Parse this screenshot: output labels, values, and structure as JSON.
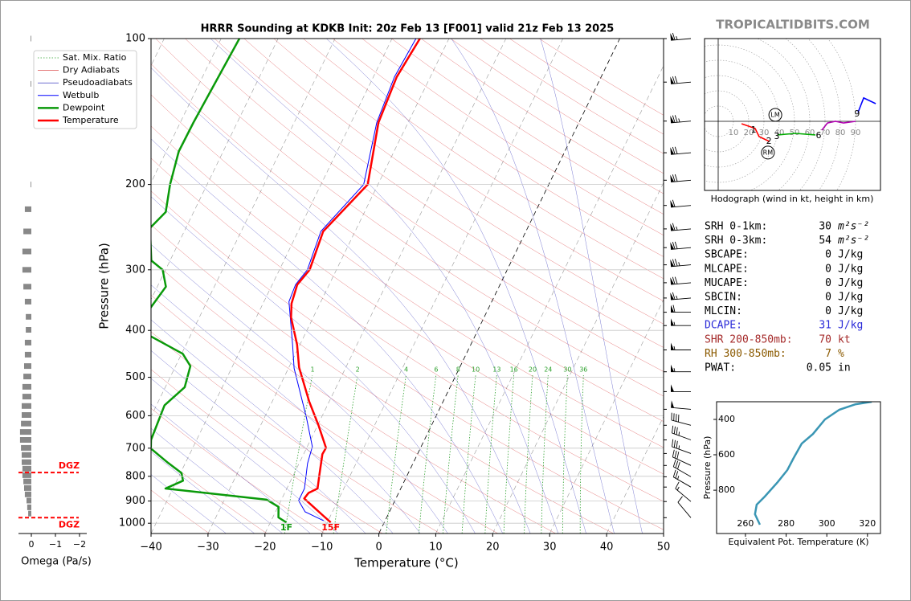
{
  "branding": "TROPICALTIDBITS.COM",
  "chart_data": [
    {
      "type": "skewt",
      "title": "HRRR Sounding at KDKB Init: 20z Feb 13 [F001] valid 21z Feb 13 2025",
      "xlabel": "Temperature (°C)",
      "ylabel": "Pressure (hPa)",
      "xlim": [
        -40,
        50
      ],
      "ylim": [
        1050,
        100
      ],
      "log_y": true,
      "grid": true,
      "legend": "upper left",
      "xticks": [
        {
          "value": -40,
          "label": "−40"
        },
        {
          "value": -30,
          "label": "−30"
        },
        {
          "value": -20,
          "label": "−20"
        },
        {
          "value": -10,
          "label": "−10"
        },
        0,
        10,
        20,
        30,
        40,
        50
      ],
      "yticks": [
        100,
        200,
        300,
        400,
        500,
        600,
        700,
        800,
        900,
        1000
      ],
      "background": [
        {
          "name": "Sat. Mix. Ratio",
          "color": "#2ca02c",
          "style": "dotted",
          "values": [
            1,
            2,
            4,
            6,
            8,
            10,
            13,
            16,
            20,
            24,
            30,
            36
          ]
        },
        {
          "name": "Dry Adiabats",
          "color": "#d62728",
          "style": "solid"
        },
        {
          "name": "Pseudoadiabats",
          "color": "#1f1fb4",
          "style": "solid"
        }
      ],
      "series": [
        {
          "name": "Wetbulb",
          "color": "#0000ff",
          "linewidth": 1,
          "x": [
            -10.8,
            -14.8,
            -16.9,
            -16.9,
            -18.5,
            -19.1,
            -22.6,
            -29.0,
            -31.3,
            -35.6,
            -35.9,
            -35.1,
            -36.0,
            -32.5,
            -35.5,
            -36.3,
            -35.8
          ],
          "y": [
            988,
            947,
            898,
            848,
            753,
            695,
            606,
            479,
            428,
            349,
            322,
            300,
            250,
            200,
            149,
            120,
            100
          ]
        },
        {
          "name": "Dewpoint",
          "color": "#0a9a0a",
          "linewidth": 2.5,
          "x": [
            -17.2,
            -19.0,
            -19.9,
            -22.6,
            -41.3,
            -38.9,
            -39.8,
            -43.1,
            -47.3,
            -48.0,
            -48.6,
            -46.6,
            -47.4,
            -49.8,
            -57.0,
            -59.4,
            -58.5,
            -60.5,
            -63.3,
            -66.3,
            -64.9,
            -66.5,
            -67.8,
            -67.7,
            -66.8
          ],
          "y": [
            996,
            973,
            925,
            894,
            848,
            817,
            788,
            750,
            701,
            673,
            571,
            524,
            474,
            447,
            411,
            360,
            325,
            300,
            287,
            246,
            228,
            200,
            171,
            149,
            100
          ]
        },
        {
          "name": "Temperature",
          "color": "#ff0000",
          "linewidth": 2.5,
          "x": [
            -9.4,
            -11.7,
            -14.8,
            -16.1,
            -15.8,
            -14.6,
            -15.5,
            -16.7,
            -16.6,
            -19.9,
            -23.5,
            -28.2,
            -30.5,
            -33.9,
            -35.0,
            -35.6,
            -34.7,
            -35.6,
            -31.8,
            -35.2,
            -35.9,
            -35.1
          ],
          "y": [
            996,
            958,
            909,
            889,
            866,
            848,
            792,
            720,
            699,
            627,
            561,
            477,
            428,
            376,
            352,
            322,
            300,
            250,
            200,
            149,
            120,
            100
          ]
        }
      ],
      "surface_labels": {
        "temperature": "15F",
        "dewpoint": "1F"
      },
      "barbs": {
        "y": [
          100,
          123,
          148,
          172,
          196,
          221,
          247,
          270,
          293,
          319,
          343,
          367,
          391,
          439,
          487,
          535,
          582,
          628,
          673,
          718,
          760,
          802,
          842,
          902,
          974
        ],
        "speed": [
          65,
          70,
          75,
          70,
          70,
          60,
          65,
          70,
          75,
          70,
          65,
          60,
          55,
          55,
          55,
          50,
          50,
          40,
          35,
          35,
          30,
          30,
          25,
          15,
          10
        ],
        "direction": [
          265,
          265,
          265,
          265,
          265,
          265,
          265,
          265,
          265,
          265,
          265,
          270,
          270,
          270,
          270,
          270,
          275,
          285,
          290,
          290,
          295,
          300,
          300,
          310,
          320
        ]
      }
    },
    {
      "type": "hodograph",
      "caption": "Hodograph (wind in kt, height in km)",
      "rings": [
        10,
        20,
        30,
        40,
        50,
        60,
        70,
        80,
        90
      ],
      "segments": [
        {
          "color": "#ff0000",
          "u": [
            15.3,
            24.2,
            26.8,
            33.7
          ],
          "v": [
            -1.6,
            -4.7,
            -10.0,
            -13.2
          ]
        },
        {
          "color": "#00aa00",
          "u": [
            38.9,
            50.5,
            63.7
          ],
          "v": [
            -8.9,
            -7.9,
            -8.9
          ]
        },
        {
          "color": "#b000b0",
          "u": [
            67.9,
            71.6,
            76.8,
            82.1,
            90.0
          ],
          "v": [
            -5.8,
            -1.1,
            0,
            -1.1,
            0
          ]
        },
        {
          "color": "#0000ff",
          "u": [
            91.6,
            95.3,
            103.2
          ],
          "v": [
            5.8,
            15.3,
            11.6
          ]
        }
      ],
      "heights": [
        1,
        2,
        3,
        6,
        9
      ],
      "height_u": [
        23.2,
        33.2,
        38.4,
        65.8,
        91.0
      ],
      "height_v": [
        -5.8,
        -13.2,
        -10.0,
        -9.5,
        4.7
      ],
      "storm_motion": [
        {
          "label": "LM",
          "u": 37.4,
          "v": 4.2
        },
        {
          "label": "RM",
          "u": 32.6,
          "v": -20.5
        }
      ]
    },
    {
      "type": "line",
      "xlabel": "Equivalent Pot. Temperature (K)",
      "ylabel": "Pressure (hPa)",
      "xlim": [
        245.8,
        326.4
      ],
      "ylim": [
        1045,
        300
      ],
      "xticks": [
        260,
        280,
        300,
        320
      ],
      "yticks": [
        400,
        600,
        800
      ],
      "series": [
        {
          "color": "#3a96b4",
          "x": [
            267.1,
            264.7,
            265.5,
            269.5,
            275.8,
            280.6,
            283.7,
            287.7,
            293.2,
            299.1,
            306.2,
            314.2,
            322.1
          ],
          "y": [
            995,
            936,
            882,
            836,
            755,
            686,
            618,
            536,
            482,
            400,
            345,
            314,
            300
          ]
        }
      ]
    },
    {
      "type": "bar",
      "xlabel": "Omega (Pa/s)",
      "xlim": [
        0.6,
        -2.2
      ],
      "xticks": [
        0,
        {
          "value": -1,
          "label": "−1"
        },
        {
          "value": -2,
          "label": "−2"
        }
      ],
      "ylim": [
        1050,
        100
      ],
      "log_y": true,
      "color": "#888888",
      "y": [
        100,
        124,
        200,
        225,
        250,
        275,
        300,
        325,
        349,
        375,
        399,
        424,
        449,
        474,
        498,
        523,
        548,
        573,
        598,
        623,
        648,
        673,
        699,
        723,
        748,
        772,
        796,
        820,
        846,
        872,
        898,
        927,
        955
      ],
      "values": [
        0.03,
        0.03,
        0.03,
        0.27,
        0.33,
        0.37,
        0.37,
        0.33,
        0.27,
        0.23,
        0.23,
        0.27,
        0.27,
        0.3,
        0.33,
        0.37,
        0.37,
        0.4,
        0.4,
        0.43,
        0.47,
        0.47,
        0.43,
        0.4,
        0.4,
        0.37,
        0.37,
        0.33,
        0.3,
        0.27,
        0.2,
        0.17,
        0.13
      ],
      "dgz": {
        "label": "DGZ",
        "y": [
          786,
          974
        ],
        "color": "#ff0000"
      }
    }
  ],
  "indices": [
    {
      "label": "SRH 0-1km:",
      "value": 30,
      "unit": "m²s⁻²",
      "color": "#000000"
    },
    {
      "label": "SRH 0-3km:",
      "value": 54,
      "unit": "m²s⁻²",
      "color": "#000000"
    },
    {
      "label": "SBCAPE:",
      "value": 0,
      "unit": "J/kg",
      "color": "#000000"
    },
    {
      "label": "MLCAPE:",
      "value": 0,
      "unit": "J/kg",
      "color": "#000000"
    },
    {
      "label": "MUCAPE:",
      "value": 0,
      "unit": "J/kg",
      "color": "#000000"
    },
    {
      "label": "SBCIN:",
      "value": 0,
      "unit": "J/kg",
      "color": "#000000"
    },
    {
      "label": "MLCIN:",
      "value": 0,
      "unit": "J/kg",
      "color": "#000000"
    },
    {
      "label": "DCAPE:",
      "value": 31,
      "unit": "J/kg",
      "color": "#2a2ad8"
    },
    {
      "label": "SHR 200-850mb:",
      "value": 70,
      "unit": "kt",
      "color": "#a52a2a"
    },
    {
      "label": "RH 300-850mb:",
      "value": 7,
      "unit": "%",
      "color": "#8b5a00"
    },
    {
      "label": "PWAT:",
      "value": 0.05,
      "unit": "in",
      "color": "#000000"
    }
  ]
}
